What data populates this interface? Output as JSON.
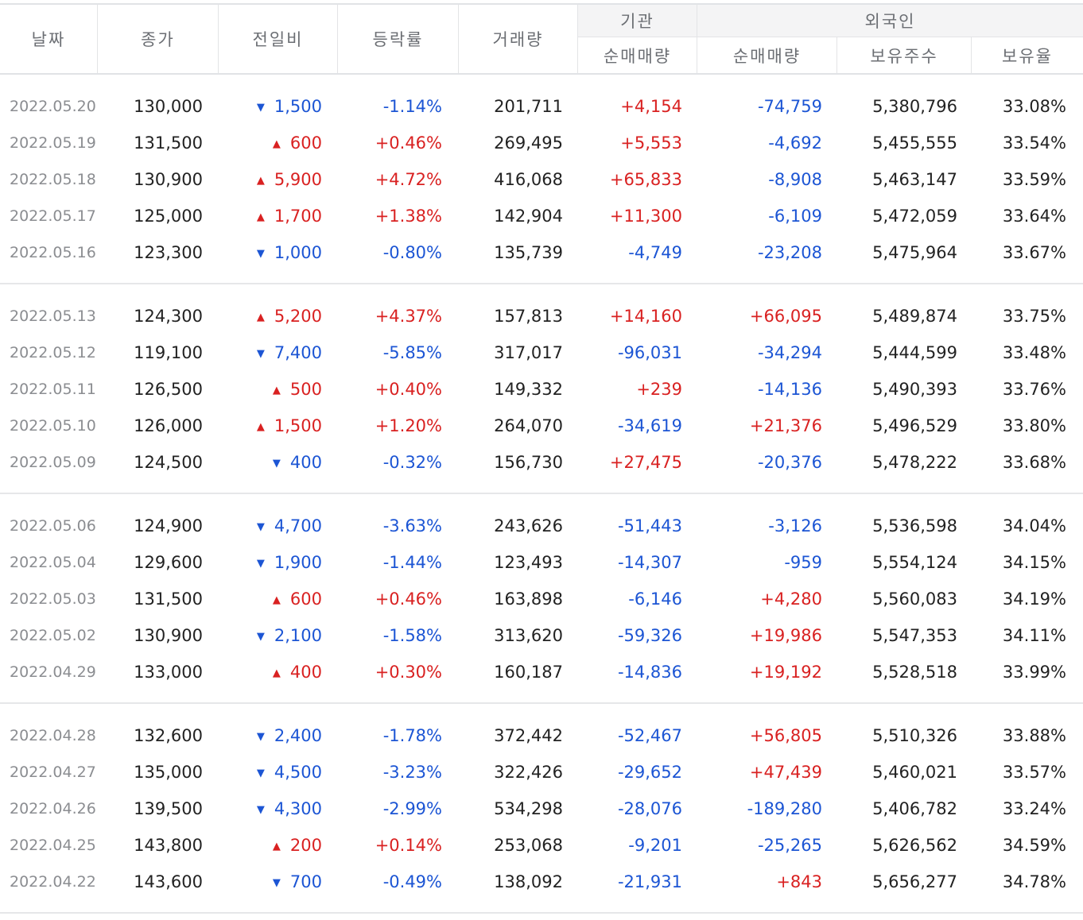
{
  "colors": {
    "up": "#d92121",
    "down": "#1c55d4",
    "header_text": "#6b6e73",
    "header_bg": "#f4f4f5"
  },
  "icons": {
    "up": "up-triangle-icon",
    "down": "down-triangle-icon"
  },
  "header": {
    "date": "날짜",
    "close": "종가",
    "diff": "전일비",
    "rate": "등락률",
    "volume": "거래량",
    "institution": "기관",
    "inst_net": "순매매량",
    "foreign": "외국인",
    "foreign_net": "순매매량",
    "foreign_holdings": "보유주수",
    "foreign_ratio": "보유율"
  },
  "rows": [
    {
      "date": "2022.05.20",
      "close": "130,000",
      "dir": "down",
      "diff": "1,500",
      "rate": "-1.14%",
      "volume": "201,711",
      "inst": "+4,154",
      "fnet": "-74,759",
      "fhold": "5,380,796",
      "fratio": "33.08%"
    },
    {
      "date": "2022.05.19",
      "close": "131,500",
      "dir": "up",
      "diff": "600",
      "rate": "+0.46%",
      "volume": "269,495",
      "inst": "+5,553",
      "fnet": "-4,692",
      "fhold": "5,455,555",
      "fratio": "33.54%"
    },
    {
      "date": "2022.05.18",
      "close": "130,900",
      "dir": "up",
      "diff": "5,900",
      "rate": "+4.72%",
      "volume": "416,068",
      "inst": "+65,833",
      "fnet": "-8,908",
      "fhold": "5,463,147",
      "fratio": "33.59%"
    },
    {
      "date": "2022.05.17",
      "close": "125,000",
      "dir": "up",
      "diff": "1,700",
      "rate": "+1.38%",
      "volume": "142,904",
      "inst": "+11,300",
      "fnet": "-6,109",
      "fhold": "5,472,059",
      "fratio": "33.64%"
    },
    {
      "date": "2022.05.16",
      "close": "123,300",
      "dir": "down",
      "diff": "1,000",
      "rate": "-0.80%",
      "volume": "135,739",
      "inst": "-4,749",
      "fnet": "-23,208",
      "fhold": "5,475,964",
      "fratio": "33.67%"
    },
    {
      "date": "2022.05.13",
      "close": "124,300",
      "dir": "up",
      "diff": "5,200",
      "rate": "+4.37%",
      "volume": "157,813",
      "inst": "+14,160",
      "fnet": "+66,095",
      "fhold": "5,489,874",
      "fratio": "33.75%"
    },
    {
      "date": "2022.05.12",
      "close": "119,100",
      "dir": "down",
      "diff": "7,400",
      "rate": "-5.85%",
      "volume": "317,017",
      "inst": "-96,031",
      "fnet": "-34,294",
      "fhold": "5,444,599",
      "fratio": "33.48%"
    },
    {
      "date": "2022.05.11",
      "close": "126,500",
      "dir": "up",
      "diff": "500",
      "rate": "+0.40%",
      "volume": "149,332",
      "inst": "+239",
      "fnet": "-14,136",
      "fhold": "5,490,393",
      "fratio": "33.76%"
    },
    {
      "date": "2022.05.10",
      "close": "126,000",
      "dir": "up",
      "diff": "1,500",
      "rate": "+1.20%",
      "volume": "264,070",
      "inst": "-34,619",
      "fnet": "+21,376",
      "fhold": "5,496,529",
      "fratio": "33.80%"
    },
    {
      "date": "2022.05.09",
      "close": "124,500",
      "dir": "down",
      "diff": "400",
      "rate": "-0.32%",
      "volume": "156,730",
      "inst": "+27,475",
      "fnet": "-20,376",
      "fhold": "5,478,222",
      "fratio": "33.68%"
    },
    {
      "date": "2022.05.06",
      "close": "124,900",
      "dir": "down",
      "diff": "4,700",
      "rate": "-3.63%",
      "volume": "243,626",
      "inst": "-51,443",
      "fnet": "-3,126",
      "fhold": "5,536,598",
      "fratio": "34.04%"
    },
    {
      "date": "2022.05.04",
      "close": "129,600",
      "dir": "down",
      "diff": "1,900",
      "rate": "-1.44%",
      "volume": "123,493",
      "inst": "-14,307",
      "fnet": "-959",
      "fhold": "5,554,124",
      "fratio": "34.15%"
    },
    {
      "date": "2022.05.03",
      "close": "131,500",
      "dir": "up",
      "diff": "600",
      "rate": "+0.46%",
      "volume": "163,898",
      "inst": "-6,146",
      "fnet": "+4,280",
      "fhold": "5,560,083",
      "fratio": "34.19%"
    },
    {
      "date": "2022.05.02",
      "close": "130,900",
      "dir": "down",
      "diff": "2,100",
      "rate": "-1.58%",
      "volume": "313,620",
      "inst": "-59,326",
      "fnet": "+19,986",
      "fhold": "5,547,353",
      "fratio": "34.11%"
    },
    {
      "date": "2022.04.29",
      "close": "133,000",
      "dir": "up",
      "diff": "400",
      "rate": "+0.30%",
      "volume": "160,187",
      "inst": "-14,836",
      "fnet": "+19,192",
      "fhold": "5,528,518",
      "fratio": "33.99%"
    },
    {
      "date": "2022.04.28",
      "close": "132,600",
      "dir": "down",
      "diff": "2,400",
      "rate": "-1.78%",
      "volume": "372,442",
      "inst": "-52,467",
      "fnet": "+56,805",
      "fhold": "5,510,326",
      "fratio": "33.88%"
    },
    {
      "date": "2022.04.27",
      "close": "135,000",
      "dir": "down",
      "diff": "4,500",
      "rate": "-3.23%",
      "volume": "322,426",
      "inst": "-29,652",
      "fnet": "+47,439",
      "fhold": "5,460,021",
      "fratio": "33.57%"
    },
    {
      "date": "2022.04.26",
      "close": "139,500",
      "dir": "down",
      "diff": "4,300",
      "rate": "-2.99%",
      "volume": "534,298",
      "inst": "-28,076",
      "fnet": "-189,280",
      "fhold": "5,406,782",
      "fratio": "33.24%"
    },
    {
      "date": "2022.04.25",
      "close": "143,800",
      "dir": "up",
      "diff": "200",
      "rate": "+0.14%",
      "volume": "253,068",
      "inst": "-9,201",
      "fnet": "-25,265",
      "fhold": "5,626,562",
      "fratio": "34.59%"
    },
    {
      "date": "2022.04.22",
      "close": "143,600",
      "dir": "down",
      "diff": "700",
      "rate": "-0.49%",
      "volume": "138,092",
      "inst": "-21,931",
      "fnet": "+843",
      "fhold": "5,656,277",
      "fratio": "34.78%"
    }
  ]
}
